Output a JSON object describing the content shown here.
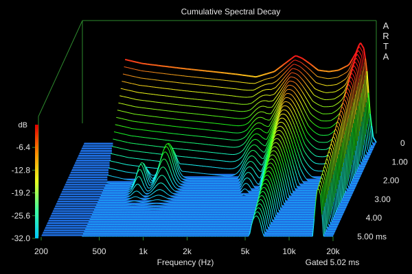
{
  "chart_data": {
    "type": "waterfall",
    "title": "Cumulative Spectral Decay",
    "watermark": "ARTA",
    "xlabel": "Frequency (Hz)",
    "x_scale": "log",
    "xlim": [
      200,
      20000
    ],
    "x_ticks": [
      "200",
      "500",
      "1k",
      "2k",
      "5k",
      "10k",
      "20k"
    ],
    "x_tick_values": [
      200,
      500,
      1000,
      2000,
      5000,
      10000,
      20000
    ],
    "time_ticks": [
      "0",
      "1.00",
      "2.00",
      "3.00",
      "4.00",
      "5.00 ms"
    ],
    "time_tick_values": [
      0,
      1,
      2,
      3,
      4,
      5
    ],
    "time_range_ms": [
      0,
      5.02
    ],
    "gate_label": "Gated 5.02 ms",
    "colorbar": {
      "unit": "dB",
      "ticks": [
        "-6.4",
        "-12.8",
        "-19.2",
        "-25.6",
        "-32.0"
      ],
      "range": [
        -32.0,
        0
      ]
    },
    "floor_db": -32.0,
    "slice_count": 40,
    "initial_response": {
      "freq_hz": [
        380,
        500,
        700,
        1000,
        1500,
        2200,
        3000,
        4000,
        5000,
        5600,
        6200,
        7000,
        8000,
        9500,
        11000,
        13000,
        14500,
        15500,
        16500,
        17300,
        18000,
        19000,
        20000
      ],
      "level_db": [
        -1.0,
        -2.5,
        -3.5,
        -4.5,
        -5.5,
        -6.5,
        -7.5,
        -5.5,
        -1.5,
        0.5,
        -0.5,
        -2.5,
        -5.0,
        -5.5,
        -5.0,
        -3.0,
        1.5,
        5.5,
        3.0,
        -6.0,
        -20.0,
        -30.0,
        -32.0
      ]
    },
    "colors": {
      "background": "#000000",
      "axes": "#2e8b2e",
      "floor": "#1e6ee0",
      "text": "#e6e6e6"
    }
  }
}
